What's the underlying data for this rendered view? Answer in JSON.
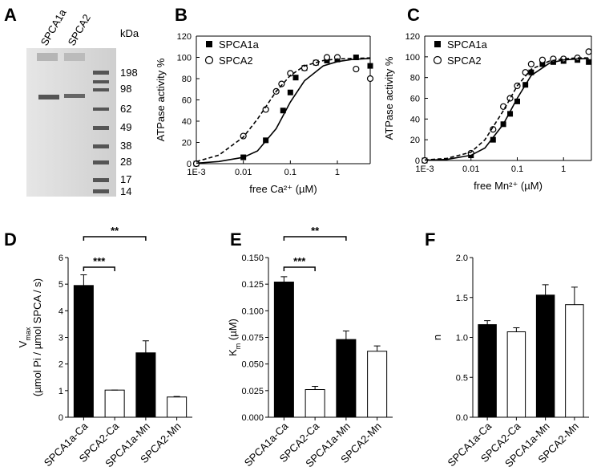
{
  "gel": {
    "panel": "A",
    "lanes": [
      "SPCA1a",
      "SPCA2"
    ],
    "unit": "kDa",
    "markers": [
      198,
      98,
      62,
      49,
      38,
      28,
      17,
      14
    ]
  },
  "chart_data": [
    {
      "panel": "B",
      "type": "scatter",
      "xscale": "log",
      "frame": true,
      "xlabel": "free Ca²⁺ (µM)",
      "ylabel": "ATPase activity %",
      "xlim": [
        0.001,
        5
      ],
      "ylim": [
        0,
        120
      ],
      "xticks": [
        {
          "value": 0.001,
          "label": "1E-3"
        },
        0.01,
        0.1,
        1
      ],
      "yticks": [
        0,
        20,
        40,
        60,
        80,
        100,
        120
      ],
      "series": [
        {
          "name": "SPCA1a",
          "marker": "square",
          "color": "#000000",
          "x": [
            0.001,
            0.01,
            0.03,
            0.07,
            0.1,
            0.13,
            0.2,
            0.35,
            0.6,
            1,
            2.5,
            5
          ],
          "values": [
            0,
            6,
            22,
            50,
            67,
            81,
            90,
            95,
            97,
            98,
            100,
            92
          ]
        },
        {
          "name": "SPCA2",
          "marker": "circle",
          "color": "#000000",
          "x": [
            0.001,
            0.01,
            0.03,
            0.05,
            0.065,
            0.1,
            0.2,
            0.35,
            0.6,
            1,
            2.5,
            5
          ],
          "values": [
            0,
            26,
            51,
            68,
            75,
            85,
            90,
            95,
            100,
            100,
            89,
            80
          ]
        },
        {
          "line": "solid",
          "color": "#000000",
          "x": [
            0.001,
            0.003,
            0.01,
            0.02,
            0.05,
            0.1,
            0.2,
            0.5,
            1,
            2,
            5
          ],
          "values": [
            0.5,
            2,
            6,
            12,
            33,
            58,
            78,
            92,
            96,
            98,
            99
          ]
        },
        {
          "line": "dashed",
          "color": "#000000",
          "x": [
            0.001,
            0.003,
            0.01,
            0.02,
            0.05,
            0.1,
            0.2,
            0.5,
            1,
            2,
            5
          ],
          "values": [
            2,
            8,
            25,
            42,
            68,
            83,
            92,
            97,
            98.5,
            99,
            99.5
          ]
        }
      ]
    },
    {
      "panel": "C",
      "type": "scatter",
      "xscale": "log",
      "frame": true,
      "xlabel": "free Mn²⁺ (µM)",
      "ylabel": "ATPase activity %",
      "xlim": [
        0.001,
        4
      ],
      "ylim": [
        0,
        120
      ],
      "xticks": [
        {
          "value": 0.001,
          "label": "1E-3"
        },
        0.01,
        0.1,
        1
      ],
      "yticks": [
        0,
        20,
        40,
        60,
        80,
        100,
        120
      ],
      "series": [
        {
          "name": "SPCA1a",
          "marker": "square",
          "color": "#000000",
          "x": [
            0.001,
            0.01,
            0.03,
            0.05,
            0.07,
            0.1,
            0.15,
            0.2,
            0.35,
            0.6,
            1,
            2,
            3.5
          ],
          "values": [
            0,
            5,
            20,
            35,
            45,
            57,
            73,
            85,
            93,
            95,
            96,
            97,
            95
          ]
        },
        {
          "name": "SPCA2",
          "marker": "circle",
          "color": "#000000",
          "x": [
            0.001,
            0.01,
            0.03,
            0.05,
            0.07,
            0.1,
            0.15,
            0.2,
            0.35,
            0.6,
            1,
            2,
            3.5
          ],
          "values": [
            0,
            7,
            30,
            52,
            60,
            72,
            85,
            93,
            97,
            98,
            98,
            99,
            105
          ]
        },
        {
          "line": "solid",
          "color": "#000000",
          "x": [
            0.001,
            0.003,
            0.01,
            0.02,
            0.05,
            0.1,
            0.2,
            0.5,
            1,
            2,
            3.5
          ],
          "values": [
            0.3,
            1,
            5,
            12,
            35,
            60,
            82,
            94,
            97,
            98,
            98.5
          ]
        },
        {
          "line": "dashed",
          "color": "#000000",
          "x": [
            0.001,
            0.003,
            0.01,
            0.02,
            0.05,
            0.1,
            0.2,
            0.5,
            1,
            2,
            3.5
          ],
          "values": [
            0.5,
            2,
            8,
            20,
            48,
            72,
            88,
            96,
            98,
            99,
            99
          ]
        }
      ]
    },
    {
      "panel": "D",
      "type": "bar",
      "ylabel": "V",
      "ylabel_sub": "max",
      "ylabel_2": "(µmol Pi / µmol SPCA / s)",
      "categories": [
        "SPCA1a-Ca",
        "SPCA2-Ca",
        "SPCA1a-Mn",
        "SPCA2-Mn"
      ],
      "values": [
        4.95,
        1.02,
        2.42,
        0.76
      ],
      "errors": [
        0.4,
        0,
        0.45,
        0.02
      ],
      "colors": [
        "#000000",
        "#ffffff",
        "#000000",
        "#ffffff"
      ],
      "ylim": [
        0,
        6
      ],
      "yticks": [
        0,
        1,
        2,
        3,
        4,
        5,
        6
      ],
      "significance": [
        {
          "from": 0,
          "to": 1,
          "label": "***"
        },
        {
          "from": 0,
          "to": 2,
          "label": "**"
        }
      ]
    },
    {
      "panel": "E",
      "type": "bar",
      "ylabel": "K",
      "ylabel_sub": "m",
      "ylabel_tail": " (µM)",
      "categories": [
        "SPCA1a-Ca",
        "SPCA2-Ca",
        "SPCA1a-Mn",
        "SPCA2-Mn"
      ],
      "values": [
        0.127,
        0.026,
        0.073,
        0.062
      ],
      "errors": [
        0.005,
        0.003,
        0.008,
        0.005
      ],
      "colors": [
        "#000000",
        "#ffffff",
        "#000000",
        "#ffffff"
      ],
      "ylim": [
        0,
        0.15
      ],
      "yticks": [
        {
          "value": 0,
          "label": "0.000"
        },
        {
          "value": 0.025,
          "label": "0.025"
        },
        {
          "value": 0.05,
          "label": "0.050"
        },
        {
          "value": 0.075,
          "label": "0.075"
        },
        {
          "value": 0.1,
          "label": "0.100"
        },
        {
          "value": 0.125,
          "label": "0.125"
        },
        {
          "value": 0.15,
          "label": "0.150"
        }
      ],
      "significance": [
        {
          "from": 0,
          "to": 1,
          "label": "***"
        },
        {
          "from": 0,
          "to": 2,
          "label": "**"
        }
      ]
    },
    {
      "panel": "F",
      "type": "bar",
      "ylabel": "n",
      "categories": [
        "SPCA1a-Ca",
        "SPCA2-Ca",
        "SPCA1a-Mn",
        "SPCA2-Mn"
      ],
      "values": [
        1.16,
        1.07,
        1.53,
        1.41
      ],
      "errors": [
        0.05,
        0.05,
        0.13,
        0.22
      ],
      "colors": [
        "#000000",
        "#ffffff",
        "#000000",
        "#ffffff"
      ],
      "ylim": [
        0,
        2
      ],
      "yticks": [
        {
          "value": 0,
          "label": "0.0"
        },
        {
          "value": 0.5,
          "label": "0.5"
        },
        {
          "value": 1,
          "label": "1.0"
        },
        {
          "value": 1.5,
          "label": "1.5"
        },
        {
          "value": 2,
          "label": "2.0"
        }
      ]
    }
  ]
}
